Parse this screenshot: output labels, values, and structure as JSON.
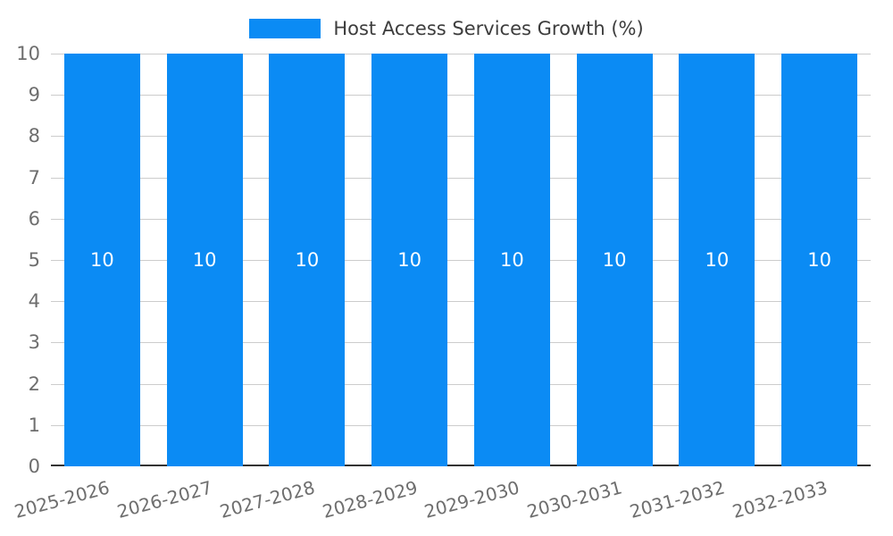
{
  "legend": {
    "label": "Host Access Services Growth (%)"
  },
  "chart_data": {
    "type": "bar",
    "title": "Host Access Services Growth (%)",
    "categories": [
      "2025-2026",
      "2026-2027",
      "2027-2028",
      "2028-2029",
      "2029-2030",
      "2030-2031",
      "2031-2032",
      "2032-2033"
    ],
    "series": [
      {
        "name": "Host Access Services Growth (%)",
        "values": [
          10,
          10,
          10,
          10,
          10,
          10,
          10,
          10
        ]
      }
    ],
    "values": [
      10,
      10,
      10,
      10,
      10,
      10,
      10,
      10
    ],
    "bar_labels": [
      "10",
      "10",
      "10",
      "10",
      "10",
      "10",
      "10",
      "10"
    ],
    "xlabel": "",
    "ylabel": "",
    "ylim": [
      0,
      10
    ],
    "yticks": [
      0,
      1,
      2,
      3,
      4,
      5,
      6,
      7,
      8,
      9,
      10
    ],
    "grid": true,
    "legend_position": "top"
  },
  "colors": {
    "bar": "#0b8bf4",
    "grid": "#cccccc",
    "axis": "#333333",
    "tick_label": "#6e6e6e",
    "legend_text": "#3d3d3d",
    "bar_label": "#ffffff",
    "background": "#ffffff"
  }
}
